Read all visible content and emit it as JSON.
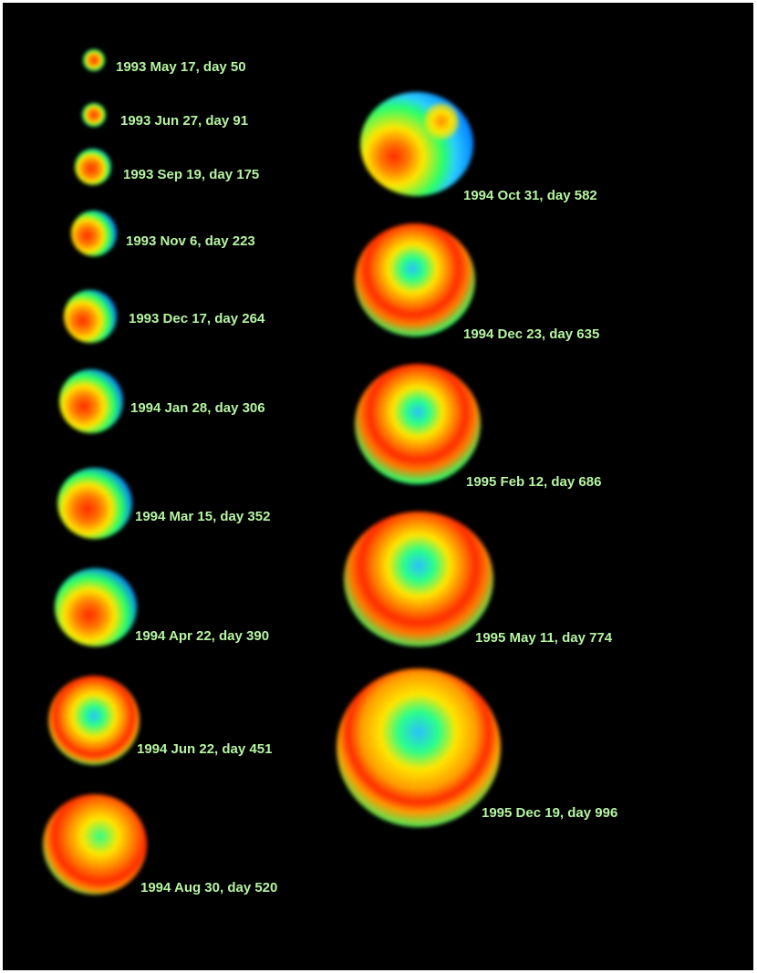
{
  "frames": [
    {
      "label": "1993 May 17, day 50"
    },
    {
      "label": "1993 Jun 27, day 91"
    },
    {
      "label": "1993 Sep 19, day 175"
    },
    {
      "label": "1993 Nov 6, day 223"
    },
    {
      "label": "1993 Dec 17, day 264"
    },
    {
      "label": "1994 Jan 28, day 306"
    },
    {
      "label": "1994 Mar 15, day 352"
    },
    {
      "label": "1994 Apr 22, day 390"
    },
    {
      "label": "1994 Jun 22, day 451"
    },
    {
      "label": "1994 Aug 30, day 520"
    },
    {
      "label": "1994 Oct 31, day 582"
    },
    {
      "label": "1994 Dec 23, day 635"
    },
    {
      "label": "1995 Feb 12, day 686"
    },
    {
      "label": "1995 May 11, day 774"
    },
    {
      "label": "1995 Dec 19, day 996"
    }
  ]
}
